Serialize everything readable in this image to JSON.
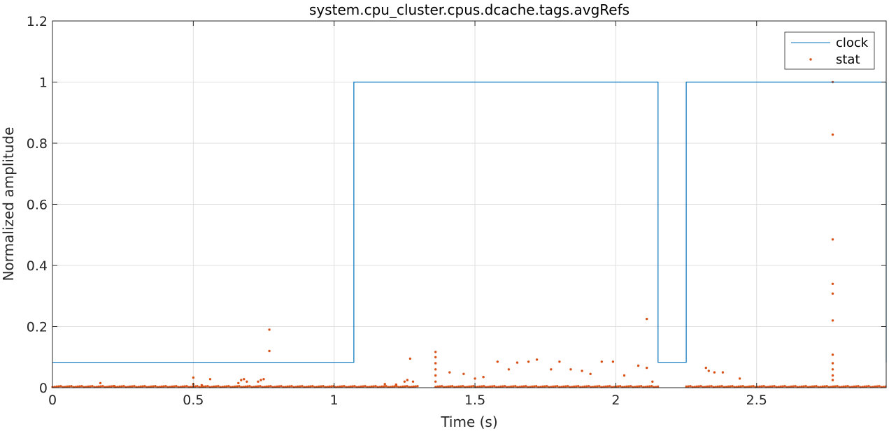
{
  "chart_data": {
    "type": "line",
    "title": "system.cpu_cluster.cpus.dcache.tags.avgRefs",
    "xlabel": "Time (s)",
    "ylabel": "Normalized amplitude",
    "xlim": [
      0,
      2.96
    ],
    "ylim": [
      0,
      1.2
    ],
    "xticks": [
      0,
      0.5,
      1,
      1.5,
      2,
      2.5
    ],
    "xtick_labels": [
      "0",
      "0.5",
      "1",
      "1.5",
      "2",
      "2.5"
    ],
    "yticks": [
      0,
      0.2,
      0.4,
      0.6,
      0.8,
      1,
      1.2
    ],
    "ytick_labels": [
      "0",
      "0.2",
      "0.4",
      "0.6",
      "0.8",
      "1",
      "1.2"
    ],
    "grid": true,
    "legend_position": "top-right",
    "colors": {
      "clock": "#0072BD",
      "stat": "#D95319",
      "grid": "#dfdfdf",
      "axes": "#262626"
    },
    "series": [
      {
        "name": "clock",
        "style": "step-line",
        "x": [
          0,
          1.07,
          1.07,
          2.15,
          2.15,
          2.25,
          2.25,
          2.96,
          2.96
        ],
        "y": [
          0.083,
          0.083,
          1,
          1,
          0.083,
          0.083,
          1,
          1,
          0.083
        ]
      },
      {
        "name": "stat",
        "style": "markers",
        "segments": [
          [
            0,
            1.3
          ],
          [
            1.36,
            2.15
          ],
          [
            2.25,
            2.96
          ]
        ],
        "baseline": 0.002,
        "points": [
          [
            0.17,
            0.015
          ],
          [
            0.22,
            0.005
          ],
          [
            0.5,
            0.033
          ],
          [
            0.5,
            0.012
          ],
          [
            0.53,
            0.008
          ],
          [
            0.56,
            0.028
          ],
          [
            0.66,
            0.015
          ],
          [
            0.67,
            0.025
          ],
          [
            0.68,
            0.028
          ],
          [
            0.69,
            0.02
          ],
          [
            0.73,
            0.02
          ],
          [
            0.74,
            0.025
          ],
          [
            0.75,
            0.028
          ],
          [
            0.77,
            0.19
          ],
          [
            0.77,
            0.12
          ],
          [
            1.18,
            0.012
          ],
          [
            1.22,
            0.01
          ],
          [
            1.25,
            0.02
          ],
          [
            1.26,
            0.025
          ],
          [
            1.27,
            0.095
          ],
          [
            1.28,
            0.02
          ],
          [
            1.36,
            0.117
          ],
          [
            1.36,
            0.1
          ],
          [
            1.36,
            0.08
          ],
          [
            1.36,
            0.06
          ],
          [
            1.36,
            0.04
          ],
          [
            1.36,
            0.02
          ],
          [
            1.41,
            0.05
          ],
          [
            1.46,
            0.045
          ],
          [
            1.5,
            0.03
          ],
          [
            1.53,
            0.035
          ],
          [
            1.58,
            0.085
          ],
          [
            1.62,
            0.06
          ],
          [
            1.65,
            0.082
          ],
          [
            1.69,
            0.085
          ],
          [
            1.72,
            0.092
          ],
          [
            1.77,
            0.06
          ],
          [
            1.8,
            0.085
          ],
          [
            1.84,
            0.06
          ],
          [
            1.88,
            0.055
          ],
          [
            1.91,
            0.045
          ],
          [
            1.95,
            0.085
          ],
          [
            1.99,
            0.085
          ],
          [
            2.03,
            0.04
          ],
          [
            2.08,
            0.072
          ],
          [
            2.11,
            0.225
          ],
          [
            2.11,
            0.065
          ],
          [
            2.13,
            0.02
          ],
          [
            2.32,
            0.065
          ],
          [
            2.33,
            0.055
          ],
          [
            2.35,
            0.05
          ],
          [
            2.38,
            0.05
          ],
          [
            2.44,
            0.03
          ],
          [
            2.77,
            1.0
          ],
          [
            2.77,
            0.828
          ],
          [
            2.77,
            0.485
          ],
          [
            2.77,
            0.34
          ],
          [
            2.77,
            0.308
          ],
          [
            2.77,
            0.22
          ],
          [
            2.77,
            0.108
          ],
          [
            2.77,
            0.08
          ],
          [
            2.77,
            0.06
          ],
          [
            2.77,
            0.04
          ],
          [
            2.77,
            0.025
          ]
        ]
      }
    ]
  }
}
